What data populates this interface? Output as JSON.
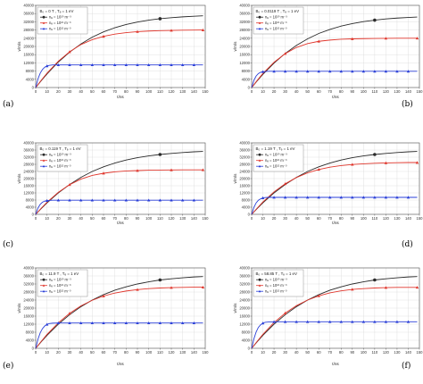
{
  "figure": {
    "colors": {
      "black": "#2a2a2a",
      "red": "#e0362c",
      "blue": "#2a3fd8",
      "grid": "#d9d9d9"
    },
    "markers": {
      "black": "circle",
      "red": "triangle",
      "blue": "triangle"
    }
  },
  "chart_data": [
    {
      "type": "line",
      "panel_label": "(a)",
      "title": "B₀ = 0 T , Tₑ = 1 eV",
      "xlabel": "t/ns",
      "ylabel": "v/m/s",
      "xlim": [
        0,
        150
      ],
      "ylim": [
        0,
        40000
      ],
      "xticks": [
        0,
        10,
        20,
        30,
        40,
        50,
        60,
        70,
        80,
        90,
        100,
        110,
        120,
        130,
        140,
        150
      ],
      "yticks": [
        0,
        4000,
        8000,
        12000,
        16000,
        20000,
        24000,
        28000,
        32000,
        36000,
        40000
      ],
      "grid": true,
      "legend_position": "top-left",
      "series": [
        {
          "name": "nₑ = 10²⁰ m⁻³",
          "color": "black",
          "x": [
            0,
            5,
            10,
            20,
            30,
            40,
            50,
            60,
            70,
            80,
            90,
            100,
            110,
            120,
            130,
            140,
            148
          ],
          "y": [
            0,
            3400,
            6600,
            12400,
            17200,
            21200,
            24500,
            27100,
            29100,
            30700,
            31900,
            32800,
            33500,
            34000,
            34400,
            34700,
            34900
          ]
        },
        {
          "name": "nₑ = 10²¹ m⁻³",
          "color": "red",
          "x": [
            0,
            5,
            10,
            20,
            30,
            40,
            50,
            60,
            70,
            80,
            90,
            100,
            110,
            120,
            130,
            140,
            148
          ],
          "y": [
            0,
            3600,
            7000,
            12800,
            17400,
            20900,
            23300,
            24900,
            26000,
            26700,
            27200,
            27500,
            27700,
            27800,
            27900,
            27950,
            28000
          ]
        },
        {
          "name": "nₑ = 10²² m⁻³",
          "color": "blue",
          "x": [
            0,
            2,
            4,
            6,
            8,
            10,
            12,
            15,
            20,
            30,
            40,
            50,
            60,
            70,
            80,
            90,
            100,
            110,
            120,
            130,
            140,
            148
          ],
          "y": [
            0,
            4200,
            7000,
            8800,
            9900,
            10500,
            10800,
            11000,
            11000,
            11000,
            11000,
            11000,
            11000,
            11000,
            11000,
            11000,
            11000,
            11000,
            11000,
            11000,
            11000,
            11000
          ]
        }
      ]
    },
    {
      "type": "line",
      "panel_label": "(b)",
      "title": "B₀ = 0.0119 T , Tₑ = 1 eV",
      "xlabel": "t/ns",
      "ylabel": "v/m/s",
      "xlim": [
        0,
        150
      ],
      "ylim": [
        0,
        40000
      ],
      "xticks": [
        0,
        10,
        20,
        30,
        40,
        50,
        60,
        70,
        80,
        90,
        100,
        110,
        120,
        130,
        140,
        150
      ],
      "yticks": [
        0,
        4000,
        8000,
        12000,
        16000,
        20000,
        24000,
        28000,
        32000,
        36000,
        40000
      ],
      "grid": true,
      "legend_position": "top-left",
      "series": [
        {
          "name": "nₑ = 10²⁰ m⁻³",
          "color": "black",
          "x": [
            0,
            5,
            10,
            20,
            30,
            40,
            50,
            60,
            70,
            80,
            90,
            100,
            110,
            120,
            130,
            140,
            148
          ],
          "y": [
            0,
            3300,
            6400,
            11900,
            16600,
            20500,
            23700,
            26300,
            28300,
            29900,
            31100,
            32100,
            32800,
            33400,
            33800,
            34100,
            34300
          ]
        },
        {
          "name": "nₑ = 10²¹ m⁻³",
          "color": "red",
          "x": [
            0,
            5,
            10,
            20,
            30,
            40,
            50,
            60,
            70,
            80,
            90,
            100,
            110,
            120,
            130,
            140,
            148
          ],
          "y": [
            0,
            3500,
            6800,
            12300,
            16500,
            19500,
            21400,
            22500,
            23100,
            23500,
            23700,
            23800,
            23900,
            23950,
            24000,
            24000,
            24000
          ]
        },
        {
          "name": "nₑ = 10²² m⁻³",
          "color": "blue",
          "x": [
            0,
            2,
            4,
            6,
            8,
            10,
            12,
            15,
            20,
            30,
            40,
            50,
            60,
            70,
            80,
            90,
            100,
            110,
            120,
            130,
            140,
            148
          ],
          "y": [
            0,
            3500,
            5600,
            6800,
            7400,
            7700,
            7800,
            7900,
            7900,
            7900,
            7900,
            7900,
            7900,
            7900,
            7900,
            7900,
            7900,
            7900,
            7900,
            7900,
            7900,
            7900
          ]
        }
      ]
    },
    {
      "type": "line",
      "panel_label": "(c)",
      "title": "B₀ = 0.119 T , Tₑ = 1 eV",
      "xlabel": "t/ns",
      "ylabel": "v/m/s",
      "xlim": [
        0,
        150
      ],
      "ylim": [
        0,
        40000
      ],
      "xticks": [
        0,
        10,
        20,
        30,
        40,
        50,
        60,
        70,
        80,
        90,
        100,
        110,
        120,
        130,
        140,
        150
      ],
      "yticks": [
        0,
        4000,
        8000,
        12000,
        16000,
        20000,
        24000,
        28000,
        32000,
        36000,
        40000
      ],
      "grid": true,
      "legend_position": "top-left",
      "series": [
        {
          "name": "nₑ = 10²⁰ m⁻³",
          "color": "black",
          "x": [
            0,
            5,
            10,
            20,
            30,
            40,
            50,
            60,
            70,
            80,
            90,
            100,
            110,
            120,
            130,
            140,
            148
          ],
          "y": [
            0,
            3300,
            6400,
            12000,
            16700,
            20700,
            24000,
            26600,
            28700,
            30400,
            31700,
            32700,
            33500,
            34100,
            34600,
            35000,
            35200
          ]
        },
        {
          "name": "nₑ = 10²¹ m⁻³",
          "color": "red",
          "x": [
            0,
            5,
            10,
            20,
            30,
            40,
            50,
            60,
            70,
            80,
            90,
            100,
            110,
            120,
            130,
            140,
            148
          ],
          "y": [
            0,
            3500,
            6800,
            12300,
            16600,
            19700,
            21800,
            23000,
            23800,
            24300,
            24500,
            24700,
            24800,
            24850,
            24900,
            24900,
            24900
          ]
        },
        {
          "name": "nₑ = 10²² m⁻³",
          "color": "blue",
          "x": [
            0,
            2,
            4,
            6,
            8,
            10,
            12,
            15,
            20,
            30,
            40,
            50,
            60,
            70,
            80,
            90,
            100,
            110,
            120,
            130,
            140,
            148
          ],
          "y": [
            0,
            3500,
            5600,
            6800,
            7400,
            7700,
            7800,
            7900,
            7900,
            7900,
            7900,
            7900,
            7900,
            7900,
            7900,
            7900,
            7900,
            7900,
            7900,
            7900,
            7900,
            7900
          ]
        }
      ]
    },
    {
      "type": "line",
      "panel_label": "(d)",
      "title": "B₀ = 1.19 T , Tₑ = 1 eV",
      "xlabel": "t/ns",
      "ylabel": "v/m/s",
      "xlim": [
        0,
        150
      ],
      "ylim": [
        0,
        40000
      ],
      "xticks": [
        0,
        10,
        20,
        30,
        40,
        50,
        60,
        70,
        80,
        90,
        100,
        110,
        120,
        130,
        140,
        150
      ],
      "yticks": [
        0,
        4000,
        8000,
        12000,
        16000,
        20000,
        24000,
        28000,
        32000,
        36000,
        40000
      ],
      "grid": true,
      "legend_position": "top-left",
      "series": [
        {
          "name": "nₑ = 10²⁰ m⁻³",
          "color": "black",
          "x": [
            0,
            5,
            10,
            20,
            30,
            40,
            50,
            60,
            70,
            80,
            90,
            100,
            110,
            120,
            130,
            140,
            148
          ],
          "y": [
            0,
            3300,
            6400,
            12000,
            16700,
            20700,
            24000,
            26600,
            28700,
            30400,
            31700,
            32700,
            33500,
            34100,
            34600,
            35000,
            35200
          ]
        },
        {
          "name": "nₑ = 10²¹ m⁻³",
          "color": "red",
          "x": [
            0,
            5,
            10,
            20,
            30,
            40,
            50,
            60,
            70,
            80,
            90,
            100,
            110,
            120,
            130,
            140,
            148
          ],
          "y": [
            0,
            3500,
            6900,
            12600,
            17100,
            20600,
            23200,
            25100,
            26400,
            27300,
            27900,
            28300,
            28600,
            28800,
            28900,
            29000,
            29000
          ]
        },
        {
          "name": "nₑ = 10²² m⁻³",
          "color": "blue",
          "x": [
            0,
            2,
            4,
            6,
            8,
            10,
            12,
            15,
            20,
            30,
            40,
            50,
            60,
            70,
            80,
            90,
            100,
            110,
            120,
            130,
            140,
            148
          ],
          "y": [
            0,
            3900,
            6400,
            7900,
            8700,
            9200,
            9400,
            9500,
            9500,
            9500,
            9500,
            9500,
            9500,
            9500,
            9500,
            9500,
            9500,
            9500,
            9500,
            9500,
            9500,
            9500
          ]
        }
      ]
    },
    {
      "type": "line",
      "panel_label": "(e)",
      "title": "B₀ = 11.9 T , Tₑ = 1 eV",
      "xlabel": "t/ns",
      "ylabel": "v/m/s",
      "xlim": [
        0,
        150
      ],
      "ylim": [
        0,
        40000
      ],
      "xticks": [
        0,
        10,
        20,
        30,
        40,
        50,
        60,
        70,
        80,
        90,
        100,
        110,
        120,
        130,
        140,
        150
      ],
      "yticks": [
        0,
        4000,
        8000,
        12000,
        16000,
        20000,
        24000,
        28000,
        32000,
        36000,
        40000
      ],
      "grid": true,
      "legend_position": "top-left",
      "series": [
        {
          "name": "nₑ = 10²⁰ m⁻³",
          "color": "black",
          "x": [
            0,
            5,
            10,
            20,
            30,
            40,
            50,
            60,
            70,
            80,
            90,
            100,
            110,
            120,
            130,
            140,
            148
          ],
          "y": [
            0,
            3300,
            6400,
            12000,
            16700,
            20700,
            24000,
            26700,
            28900,
            30600,
            32000,
            33100,
            34000,
            34600,
            35100,
            35500,
            35700
          ]
        },
        {
          "name": "nₑ = 10²¹ m⁻³",
          "color": "red",
          "x": [
            0,
            5,
            10,
            20,
            30,
            40,
            50,
            60,
            70,
            80,
            90,
            100,
            110,
            120,
            130,
            140,
            148
          ],
          "y": [
            0,
            3500,
            6900,
            12700,
            17400,
            21100,
            23900,
            26000,
            27500,
            28500,
            29200,
            29700,
            30000,
            30200,
            30300,
            30400,
            30400
          ]
        },
        {
          "name": "nₑ = 10²² m⁻³",
          "color": "blue",
          "x": [
            0,
            2,
            4,
            6,
            8,
            10,
            12,
            15,
            20,
            30,
            40,
            50,
            60,
            70,
            80,
            90,
            100,
            110,
            120,
            130,
            140,
            148
          ],
          "y": [
            0,
            4500,
            7700,
            9800,
            11100,
            11900,
            12300,
            12500,
            12600,
            12600,
            12600,
            12600,
            12600,
            12600,
            12600,
            12600,
            12600,
            12600,
            12600,
            12600,
            12600,
            12600
          ]
        }
      ]
    },
    {
      "type": "line",
      "panel_label": "(f)",
      "title": "B₀ = 58.85 T , Tₑ = 1 eV",
      "xlabel": "t/ns",
      "ylabel": "v/m/s",
      "xlim": [
        0,
        150
      ],
      "ylim": [
        0,
        40000
      ],
      "xticks": [
        0,
        10,
        20,
        30,
        40,
        50,
        60,
        70,
        80,
        90,
        100,
        110,
        120,
        130,
        140,
        150
      ],
      "yticks": [
        0,
        4000,
        8000,
        12000,
        16000,
        20000,
        24000,
        28000,
        32000,
        36000,
        40000
      ],
      "grid": true,
      "legend_position": "top-left",
      "series": [
        {
          "name": "nₑ = 10²⁰ m⁻³",
          "color": "black",
          "x": [
            0,
            5,
            10,
            20,
            30,
            40,
            50,
            60,
            70,
            80,
            90,
            100,
            110,
            120,
            130,
            140,
            148
          ],
          "y": [
            0,
            3300,
            6400,
            12000,
            16700,
            20700,
            24000,
            26700,
            28900,
            30600,
            32000,
            33100,
            34000,
            34600,
            35100,
            35500,
            35700
          ]
        },
        {
          "name": "nₑ = 10²¹ m⁻³",
          "color": "red",
          "x": [
            0,
            5,
            10,
            20,
            30,
            40,
            50,
            60,
            70,
            80,
            90,
            100,
            110,
            120,
            130,
            140,
            148
          ],
          "y": [
            0,
            3500,
            6900,
            12800,
            17500,
            21200,
            24000,
            26100,
            27600,
            28600,
            29300,
            29700,
            30000,
            30200,
            30300,
            30300,
            30300
          ]
        },
        {
          "name": "nₑ = 10²² m⁻³",
          "color": "blue",
          "x": [
            0,
            2,
            4,
            6,
            8,
            10,
            12,
            15,
            20,
            30,
            40,
            50,
            60,
            70,
            80,
            90,
            100,
            110,
            120,
            130,
            140,
            148
          ],
          "y": [
            0,
            4700,
            8100,
            10400,
            11700,
            12500,
            12900,
            13100,
            13200,
            13200,
            13200,
            13200,
            13200,
            13200,
            13200,
            13200,
            13200,
            13200,
            13200,
            13200,
            13200,
            13200
          ]
        }
      ]
    }
  ]
}
